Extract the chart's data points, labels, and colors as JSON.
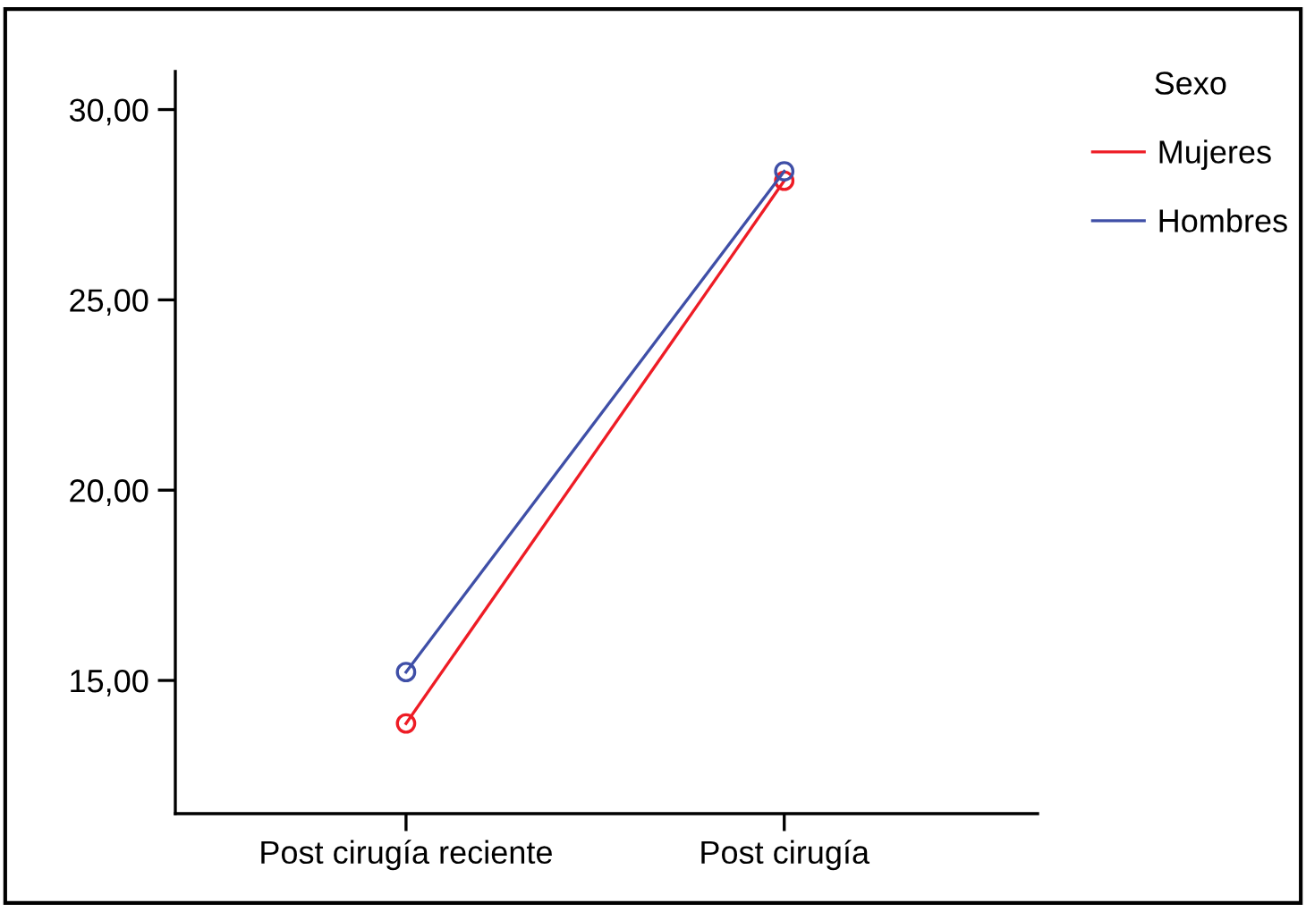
{
  "chart_data": {
    "type": "line",
    "categories": [
      "Post cirugía reciente",
      "Post cirugía"
    ],
    "series": [
      {
        "name": "Mujeres",
        "color": "#ee1c25",
        "values": [
          13.87,
          28.13
        ]
      },
      {
        "name": "Hombres",
        "color": "#3f4fa7",
        "values": [
          15.22,
          28.38
        ]
      }
    ],
    "ylim": [
      11.5,
      31.0
    ],
    "yticks": [
      {
        "value": 15,
        "label": "15,00"
      },
      {
        "value": 20,
        "label": "20,00"
      },
      {
        "value": 25,
        "label": "25,00"
      },
      {
        "value": 30,
        "label": "30,00"
      }
    ],
    "legend": "right",
    "legend_title": "Sexo",
    "marker": "circle",
    "line_style": "solid",
    "grid": false
  }
}
